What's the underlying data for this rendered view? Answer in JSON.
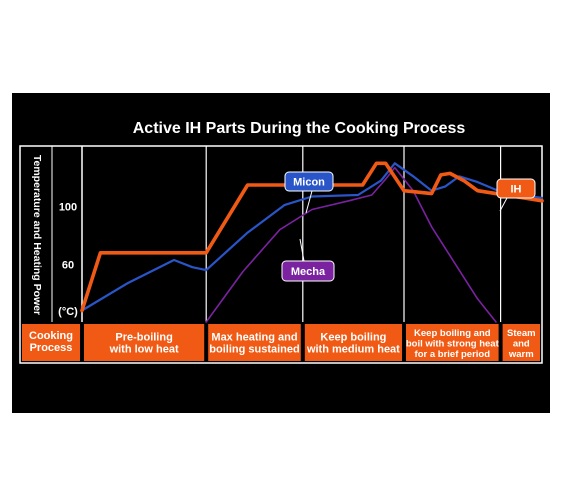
{
  "chart_data": {
    "type": "line",
    "title": "Active IH Parts During the Cooking Process",
    "ylabel": "Temperature and Heating Power",
    "yunit": "(°C)",
    "yticks": [
      {
        "label": "100",
        "value": 100
      },
      {
        "label": "60",
        "value": 60
      }
    ],
    "ylim": [
      20,
      142
    ],
    "xlim": [
      0,
      100
    ],
    "grid": false,
    "process_row_label": [
      "Cooking",
      "Process"
    ],
    "stages": [
      {
        "lines": [
          "Pre-boiling",
          "with low heat"
        ],
        "start": 0,
        "end": 27
      },
      {
        "lines": [
          "Max heating and",
          "boiling sustained"
        ],
        "start": 27,
        "end": 48
      },
      {
        "lines": [
          "Keep boiling",
          "with medium heat"
        ],
        "start": 48,
        "end": 70
      },
      {
        "lines": [
          "Keep boiling and",
          "boil with strong heat",
          "for a brief period"
        ],
        "start": 70,
        "end": 91
      },
      {
        "lines": [
          "Steam",
          "and",
          "warm"
        ],
        "start": 91,
        "end": 100
      }
    ],
    "series": [
      {
        "name": "IH",
        "color": "#f05a14",
        "points": [
          [
            0,
            28
          ],
          [
            4,
            68
          ],
          [
            27,
            68
          ],
          [
            36,
            115
          ],
          [
            61,
            115
          ],
          [
            64,
            130
          ],
          [
            66,
            130
          ],
          [
            70,
            111
          ],
          [
            76,
            109
          ],
          [
            78,
            122
          ],
          [
            80,
            123
          ],
          [
            83,
            118
          ],
          [
            86,
            111
          ],
          [
            100,
            104
          ]
        ]
      },
      {
        "name": "Micon",
        "color": "#2a55c8",
        "points": [
          [
            0,
            28
          ],
          [
            10,
            47
          ],
          [
            20,
            63
          ],
          [
            24,
            58
          ],
          [
            27,
            56
          ],
          [
            36,
            82
          ],
          [
            44,
            101
          ],
          [
            50,
            107
          ],
          [
            60,
            108
          ],
          [
            65,
            118
          ],
          [
            68,
            130
          ],
          [
            72,
            121
          ],
          [
            76,
            111
          ],
          [
            79,
            114
          ],
          [
            82,
            121
          ],
          [
            86,
            117
          ],
          [
            92,
            109
          ],
          [
            100,
            106
          ]
        ]
      },
      {
        "name": "Mecha",
        "color": "#7a22a0",
        "points": [
          [
            27,
            20
          ],
          [
            35,
            55
          ],
          [
            43,
            84
          ],
          [
            50,
            98
          ],
          [
            58,
            104
          ],
          [
            63,
            108
          ],
          [
            66,
            119
          ],
          [
            68,
            127
          ],
          [
            72,
            111
          ],
          [
            76,
            86
          ],
          [
            81,
            61
          ],
          [
            86,
            36
          ],
          [
            90,
            20
          ]
        ]
      }
    ],
    "tags": [
      {
        "name": "Micon",
        "fill": "#2a55c8"
      },
      {
        "name": "Mecha",
        "fill": "#7a22a0"
      },
      {
        "name": "IH",
        "fill": "#f05a14"
      }
    ]
  },
  "colors": {
    "background": "#000000",
    "frame": "#ffffff",
    "process_row": "#f05a14"
  }
}
